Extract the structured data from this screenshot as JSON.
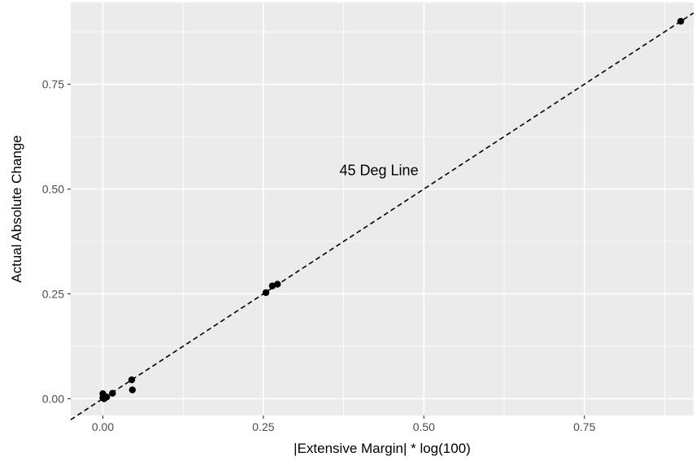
{
  "chart_data": {
    "type": "scatter",
    "xlabel": "|Extensive Margin| * log(100)",
    "ylabel": "Actual Absolute Change",
    "xlim": [
      -0.05,
      0.92
    ],
    "ylim": [
      -0.04,
      0.945
    ],
    "x_ticks": [
      0.0,
      0.25,
      0.5,
      0.75
    ],
    "x_tick_labels": [
      "0.00",
      "0.25",
      "0.50",
      "0.75"
    ],
    "y_ticks": [
      0.0,
      0.25,
      0.5,
      0.75
    ],
    "y_tick_labels": [
      "0.00",
      "0.25",
      "0.50",
      "0.75"
    ],
    "grid": true,
    "points": [
      {
        "x": 0.0,
        "y": 0.012
      },
      {
        "x": 0.0,
        "y": 0.002
      },
      {
        "x": 0.002,
        "y": 0.0
      },
      {
        "x": 0.006,
        "y": 0.004
      },
      {
        "x": 0.015,
        "y": 0.013
      },
      {
        "x": 0.045,
        "y": 0.045
      },
      {
        "x": 0.046,
        "y": 0.021
      },
      {
        "x": 0.254,
        "y": 0.253
      },
      {
        "x": 0.264,
        "y": 0.269
      },
      {
        "x": 0.272,
        "y": 0.273
      },
      {
        "x": 0.9,
        "y": 0.9
      }
    ],
    "reference_line": {
      "slope": 1,
      "intercept": 0,
      "style": "dashed"
    },
    "annotation": {
      "text": "45 Deg Line",
      "x": 0.43,
      "y": 0.545
    },
    "colors": {
      "panel": "#ebebeb",
      "grid": "#ffffff",
      "points": "#000000",
      "line": "#000000"
    }
  }
}
